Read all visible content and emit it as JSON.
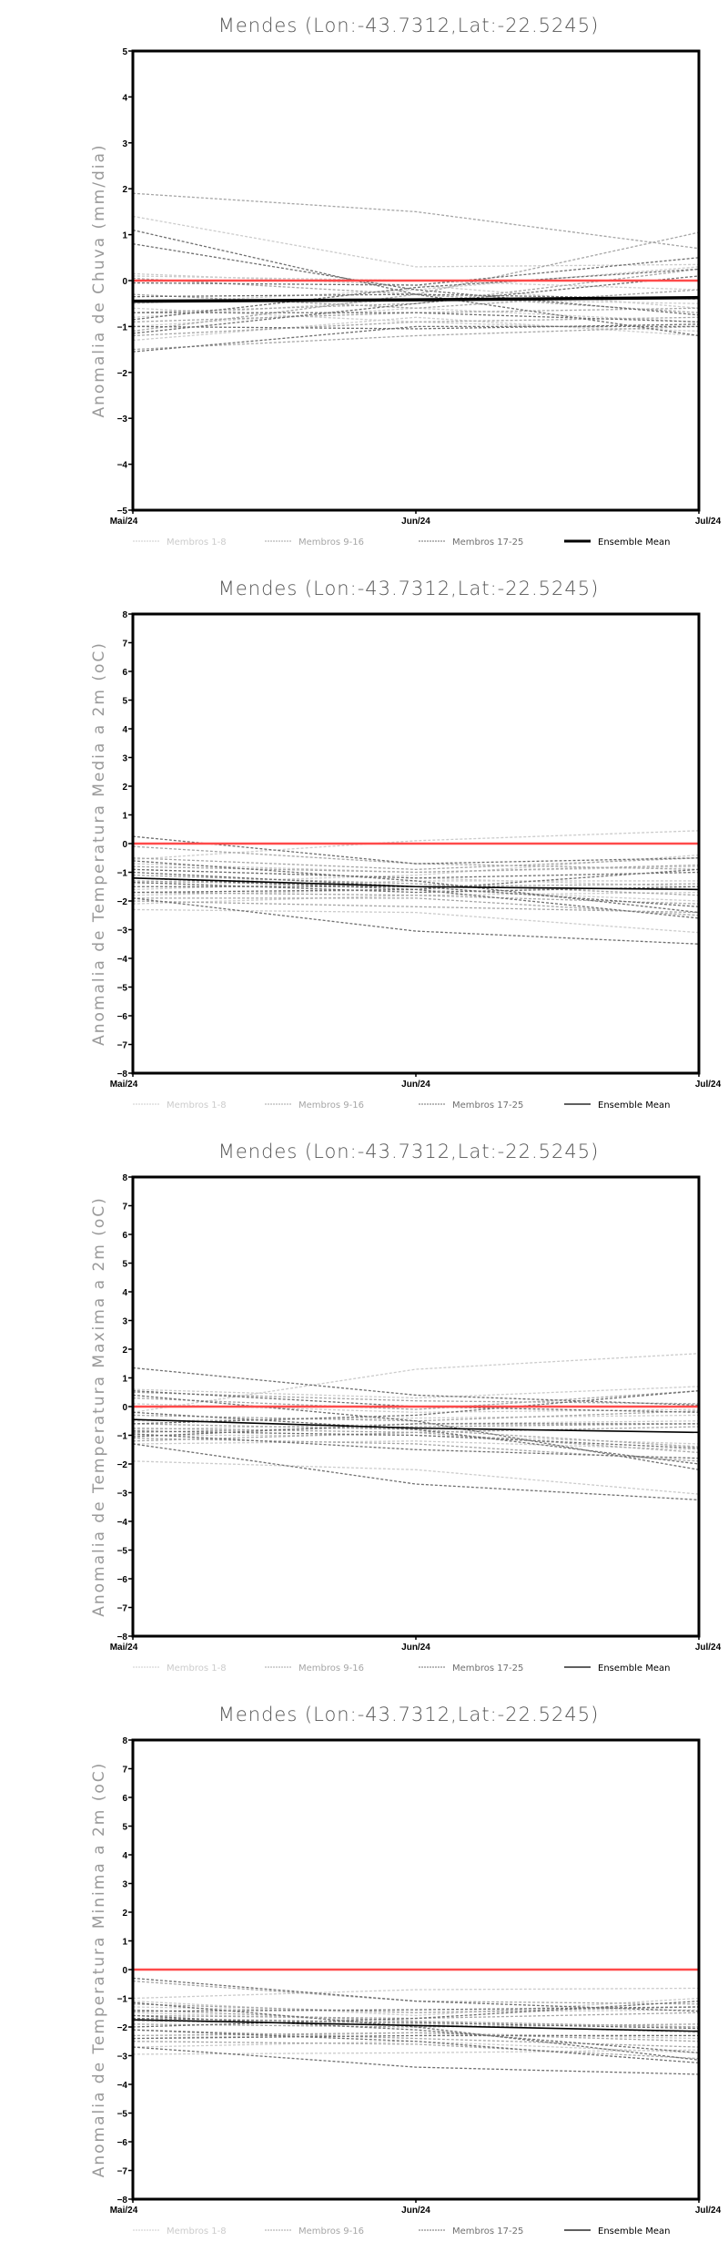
{
  "chart_data": [
    {
      "type": "line",
      "title": "Mendes (Lon:-43.7312,Lat:-22.5245)",
      "ylabel": "Anomalia de Chuva (mm/dia)",
      "xlabel": "",
      "x": [
        "Mai/24",
        "Jun/24",
        "Jul/24"
      ],
      "ylim": [
        -5,
        5
      ],
      "yticks": [
        -5,
        -4,
        -3,
        -2,
        -1,
        0,
        1,
        2,
        3,
        4,
        5
      ],
      "reference_line": 0,
      "mean_bold": true,
      "groups": [
        {
          "name": "Membros 1-8",
          "color": "#cccccc",
          "members": [
            [
              1.4,
              0.3,
              0.35
            ],
            [
              0.15,
              -0.1,
              -0.6
            ],
            [
              -0.5,
              -0.2,
              0.3
            ],
            [
              -1.3,
              -0.8,
              -1.2
            ],
            [
              -0.8,
              -0.4,
              -0.5
            ],
            [
              0.1,
              0.0,
              -0.2
            ],
            [
              -1.0,
              -0.6,
              -0.9
            ],
            [
              -0.6,
              -0.9,
              -1.1
            ]
          ]
        },
        {
          "name": "Membros 9-16",
          "color": "#a6a6a6",
          "members": [
            [
              1.9,
              1.5,
              0.7
            ],
            [
              -1.1,
              -0.3,
              1.05
            ],
            [
              -0.3,
              -0.6,
              -0.2
            ],
            [
              -0.9,
              -0.7,
              -0.6
            ],
            [
              -1.5,
              -1.2,
              -1.0
            ],
            [
              -0.7,
              -0.5,
              0.25
            ],
            [
              0.05,
              -0.3,
              -0.7
            ],
            [
              -1.2,
              -0.9,
              -0.8
            ]
          ]
        },
        {
          "name": "Membros 17-25",
          "color": "#707070",
          "members": [
            [
              1.1,
              -0.3,
              -1.2
            ],
            [
              0.8,
              -0.2,
              -0.75
            ],
            [
              -0.05,
              -0.1,
              0.5
            ],
            [
              -1.55,
              -1.0,
              -1.0
            ],
            [
              -0.7,
              -0.7,
              -0.9
            ],
            [
              -1.15,
              -0.5,
              0.1
            ],
            [
              -0.35,
              -0.3,
              -0.4
            ],
            [
              -1.0,
              -1.05,
              -0.95
            ],
            [
              -0.85,
              -0.15,
              0.25
            ]
          ]
        }
      ],
      "mean": {
        "name": "Ensemble Mean",
        "color": "#000000",
        "values": [
          -0.45,
          -0.42,
          -0.37
        ]
      }
    },
    {
      "type": "line",
      "title": "Mendes (Lon:-43.7312,Lat:-22.5245)",
      "ylabel": "Anomalia de Temperatura Media a 2m (oC)",
      "xlabel": "",
      "x": [
        "Mai/24",
        "Jun/24",
        "Jul/24"
      ],
      "ylim": [
        -8,
        8
      ],
      "yticks": [
        -8,
        -7,
        -6,
        -5,
        -4,
        -3,
        -2,
        -1,
        0,
        1,
        2,
        3,
        4,
        5,
        6,
        7,
        8
      ],
      "reference_line": 0,
      "mean_bold": false,
      "groups": [
        {
          "name": "Membros 1-8",
          "color": "#cccccc",
          "members": [
            [
              -0.55,
              0.1,
              0.45
            ],
            [
              -2.3,
              -2.4,
              -3.1
            ],
            [
              -0.7,
              -1.0,
              -0.8
            ],
            [
              -1.6,
              -1.3,
              -1.3
            ],
            [
              -2.1,
              -1.8,
              -1.7
            ],
            [
              -0.9,
              -1.2,
              -1.5
            ],
            [
              -1.8,
              -1.6,
              -2.0
            ],
            [
              -1.4,
              -1.1,
              -0.4
            ]
          ]
        },
        {
          "name": "Membros 9-16",
          "color": "#a6a6a6",
          "members": [
            [
              -0.1,
              -0.7,
              -0.9
            ],
            [
              -2.0,
              -2.2,
              -2.4
            ],
            [
              -1.3,
              -1.5,
              -1.4
            ],
            [
              -0.5,
              -0.9,
              -0.5
            ],
            [
              -1.7,
              -1.8,
              -2.1
            ],
            [
              -1.1,
              -1.4,
              -1.8
            ],
            [
              -1.9,
              -1.9,
              -2.5
            ],
            [
              -0.8,
              -1.0,
              -0.75
            ]
          ]
        },
        {
          "name": "Membros 17-25",
          "color": "#707070",
          "members": [
            [
              0.25,
              -0.7,
              -0.5
            ],
            [
              -1.9,
              -3.05,
              -3.5
            ],
            [
              -0.6,
              -1.3,
              -2.4
            ],
            [
              -1.2,
              -1.6,
              -2.6
            ],
            [
              -1.5,
              -1.5,
              -1.6
            ],
            [
              -1.7,
              -1.6,
              -0.9
            ],
            [
              -1.0,
              -1.5,
              -2.2
            ],
            [
              -1.35,
              -1.7,
              -1.5
            ],
            [
              -0.9,
              -1.2,
              -1.0
            ]
          ]
        }
      ],
      "mean": {
        "name": "Ensemble Mean",
        "color": "#000000",
        "values": [
          -1.2,
          -1.5,
          -1.6
        ]
      }
    },
    {
      "type": "line",
      "title": "Mendes (Lon:-43.7312,Lat:-22.5245)",
      "ylabel": "Anomalia de Temperatura Maxima a 2m (oC)",
      "xlabel": "",
      "x": [
        "Mai/24",
        "Jun/24",
        "Jul/24"
      ],
      "ylim": [
        -8,
        8
      ],
      "yticks": [
        -8,
        -7,
        -6,
        -5,
        -4,
        -3,
        -2,
        -1,
        0,
        1,
        2,
        3,
        4,
        5,
        6,
        7,
        8
      ],
      "reference_line": 0,
      "mean_bold": false,
      "groups": [
        {
          "name": "Membros 1-8",
          "color": "#cccccc",
          "members": [
            [
              -0.2,
              1.3,
              1.85
            ],
            [
              -1.9,
              -2.2,
              -3.05
            ],
            [
              0.6,
              0.3,
              0.7
            ],
            [
              -0.5,
              -0.4,
              -0.3
            ],
            [
              -1.3,
              -1.2,
              -1.5
            ],
            [
              0.1,
              -0.2,
              -0.1
            ],
            [
              -0.8,
              -0.6,
              -0.5
            ],
            [
              -1.0,
              -1.0,
              -1.3
            ]
          ]
        },
        {
          "name": "Membros 9-16",
          "color": "#a6a6a6",
          "members": [
            [
              0.5,
              0.2,
              0.1
            ],
            [
              -0.6,
              -0.8,
              -1.4
            ],
            [
              -0.9,
              -0.7,
              -0.6
            ],
            [
              0.3,
              -0.1,
              0.55
            ],
            [
              -1.1,
              -1.3,
              -1.9
            ],
            [
              -0.3,
              -0.5,
              -0.15
            ],
            [
              -0.75,
              -0.9,
              -1.6
            ],
            [
              -1.2,
              -0.9,
              -0.7
            ]
          ]
        },
        {
          "name": "Membros 17-25",
          "color": "#707070",
          "members": [
            [
              1.35,
              0.4,
              0.05
            ],
            [
              -1.3,
              -2.7,
              -3.25
            ],
            [
              0.4,
              -0.5,
              -2.2
            ],
            [
              -0.2,
              -0.8,
              -2.0
            ],
            [
              -0.95,
              -1.5,
              -1.8
            ],
            [
              -0.6,
              -0.3,
              0.55
            ],
            [
              -0.85,
              -1.0,
              -1.45
            ],
            [
              0.55,
              0.0,
              -0.2
            ],
            [
              -1.05,
              -0.6,
              -0.6
            ]
          ]
        }
      ],
      "mean": {
        "name": "Ensemble Mean",
        "color": "#000000",
        "values": [
          -0.45,
          -0.75,
          -0.9
        ]
      }
    },
    {
      "type": "line",
      "title": "Mendes (Lon:-43.7312,Lat:-22.5245)",
      "ylabel": "Anomalia de Temperatura Minima a 2m (oC)",
      "xlabel": "",
      "x": [
        "Mai/24",
        "Jun/24",
        "Jul/24"
      ],
      "ylim": [
        -8,
        8
      ],
      "yticks": [
        -8,
        -7,
        -6,
        -5,
        -4,
        -3,
        -2,
        -1,
        0,
        1,
        2,
        3,
        4,
        5,
        6,
        7,
        8
      ],
      "reference_line": 0,
      "mean_bold": false,
      "groups": [
        {
          "name": "Membros 1-8",
          "color": "#cccccc",
          "members": [
            [
              -1.0,
              -0.7,
              -0.65
            ],
            [
              -2.95,
              -2.9,
              -2.8
            ],
            [
              -1.1,
              -1.6,
              -1.0
            ],
            [
              -1.5,
              -1.8,
              -2.0
            ],
            [
              -2.4,
              -2.2,
              -2.4
            ],
            [
              -1.3,
              -1.5,
              -1.4
            ],
            [
              -2.7,
              -2.5,
              -2.9
            ],
            [
              -1.8,
              -1.9,
              -2.2
            ]
          ]
        },
        {
          "name": "Membros 9-16",
          "color": "#a6a6a6",
          "members": [
            [
              -0.4,
              -1.1,
              -1.2
            ],
            [
              -2.1,
              -2.4,
              -2.7
            ],
            [
              -1.6,
              -1.7,
              -1.5
            ],
            [
              -1.2,
              -1.5,
              -1.3
            ],
            [
              -2.5,
              -2.6,
              -3.1
            ],
            [
              -1.9,
              -2.0,
              -1.9
            ],
            [
              -2.3,
              -2.2,
              -2.5
            ],
            [
              -1.4,
              -1.8,
              -2.0
            ]
          ]
        },
        {
          "name": "Membros 17-25",
          "color": "#707070",
          "members": [
            [
              -0.3,
              -1.1,
              -1.45
            ],
            [
              -2.7,
              -3.4,
              -3.65
            ],
            [
              -1.15,
              -2.0,
              -3.15
            ],
            [
              -2.1,
              -2.5,
              -3.25
            ],
            [
              -1.7,
              -1.85,
              -2.05
            ],
            [
              -2.0,
              -1.7,
              -1.1
            ],
            [
              -1.6,
              -2.1,
              -2.9
            ],
            [
              -2.4,
              -2.3,
              -2.3
            ],
            [
              -1.45,
              -1.4,
              -1.3
            ]
          ]
        }
      ],
      "mean": {
        "name": "Ensemble Mean",
        "color": "#000000",
        "values": [
          -1.75,
          -1.95,
          -2.15
        ]
      }
    }
  ],
  "colors": {
    "reference_line": "#ff4a4a"
  }
}
